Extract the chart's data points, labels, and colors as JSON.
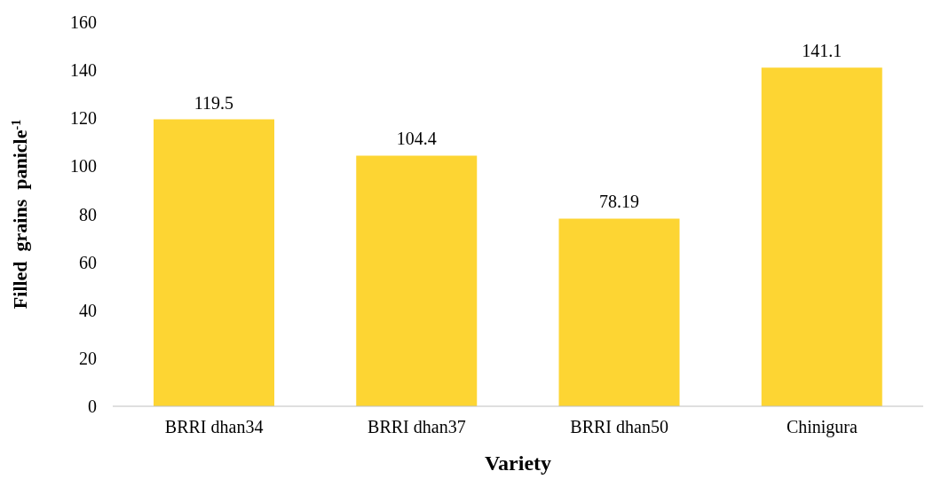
{
  "chart_data": {
    "type": "bar",
    "xlabel": "Variety",
    "ylabel": "Filled  grains  panicle$^{-1}$",
    "categories": [
      "BRRI dhan34",
      "BRRI dhan37",
      "BRRI dhan50",
      "Chinigura"
    ],
    "values": [
      119.5,
      104.4,
      78.19,
      141.1
    ],
    "color": "#fdd533",
    "ylim": [
      0,
      160
    ],
    "yticks": [
      0,
      20,
      40,
      60,
      80,
      100,
      120,
      140,
      160
    ],
    "grid": false,
    "data_labels": true
  }
}
